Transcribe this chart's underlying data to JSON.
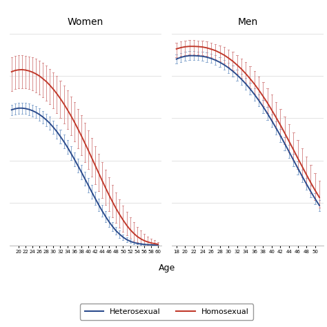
{
  "title_women": "Women",
  "title_men": "Men",
  "xlabel": "Age",
  "legend_labels": [
    "Heterosexual",
    "Homosexual"
  ],
  "het_color": "#2B4B8C",
  "hom_color": "#C0392B",
  "het_ci_color": "#8BAAD0",
  "hom_ci_color": "#D89090",
  "background_color": "#FFFFFF",
  "grid_color": "#DDDDDD",
  "women_ages": [
    18,
    19,
    20,
    21,
    22,
    23,
    24,
    25,
    26,
    27,
    28,
    29,
    30,
    31,
    32,
    33,
    34,
    35,
    36,
    37,
    38,
    39,
    40,
    41,
    42,
    43,
    44,
    45,
    46,
    47,
    48,
    49,
    50,
    51,
    52,
    53,
    54,
    55,
    56,
    57,
    58,
    59,
    60
  ],
  "women_het_mean": [
    0.64,
    0.645,
    0.648,
    0.648,
    0.646,
    0.642,
    0.636,
    0.628,
    0.618,
    0.606,
    0.592,
    0.576,
    0.557,
    0.537,
    0.514,
    0.49,
    0.464,
    0.436,
    0.407,
    0.377,
    0.347,
    0.315,
    0.284,
    0.252,
    0.221,
    0.191,
    0.162,
    0.135,
    0.11,
    0.088,
    0.068,
    0.052,
    0.038,
    0.027,
    0.019,
    0.013,
    0.009,
    0.006,
    0.004,
    0.003,
    0.002,
    0.001,
    0.001
  ],
  "women_het_lo": [
    0.615,
    0.619,
    0.622,
    0.622,
    0.62,
    0.615,
    0.609,
    0.6,
    0.589,
    0.577,
    0.562,
    0.545,
    0.526,
    0.505,
    0.482,
    0.457,
    0.431,
    0.403,
    0.374,
    0.344,
    0.313,
    0.282,
    0.251,
    0.22,
    0.19,
    0.161,
    0.134,
    0.109,
    0.086,
    0.066,
    0.049,
    0.035,
    0.024,
    0.016,
    0.01,
    0.006,
    0.004,
    0.002,
    0.001,
    0.001,
    0.001,
    0.0005,
    0.0003
  ],
  "women_het_hi": [
    0.665,
    0.671,
    0.674,
    0.674,
    0.672,
    0.669,
    0.663,
    0.656,
    0.647,
    0.635,
    0.622,
    0.607,
    0.588,
    0.569,
    0.546,
    0.523,
    0.497,
    0.469,
    0.44,
    0.41,
    0.381,
    0.348,
    0.317,
    0.284,
    0.252,
    0.221,
    0.19,
    0.161,
    0.134,
    0.11,
    0.087,
    0.069,
    0.052,
    0.038,
    0.028,
    0.02,
    0.014,
    0.01,
    0.007,
    0.005,
    0.003,
    0.002,
    0.001
  ],
  "women_hom_mean": [
    0.82,
    0.826,
    0.829,
    0.83,
    0.828,
    0.824,
    0.818,
    0.81,
    0.8,
    0.787,
    0.773,
    0.756,
    0.737,
    0.716,
    0.693,
    0.668,
    0.641,
    0.613,
    0.583,
    0.551,
    0.518,
    0.484,
    0.449,
    0.413,
    0.377,
    0.341,
    0.305,
    0.27,
    0.236,
    0.204,
    0.173,
    0.145,
    0.119,
    0.095,
    0.074,
    0.057,
    0.042,
    0.031,
    0.022,
    0.016,
    0.011,
    0.008,
    0.005
  ],
  "women_hom_lo": [
    0.73,
    0.738,
    0.742,
    0.743,
    0.741,
    0.737,
    0.731,
    0.722,
    0.711,
    0.698,
    0.683,
    0.666,
    0.647,
    0.625,
    0.602,
    0.577,
    0.549,
    0.521,
    0.491,
    0.459,
    0.427,
    0.393,
    0.359,
    0.325,
    0.29,
    0.256,
    0.222,
    0.19,
    0.16,
    0.132,
    0.106,
    0.083,
    0.063,
    0.046,
    0.033,
    0.022,
    0.015,
    0.009,
    0.006,
    0.003,
    0.002,
    0.001,
    0.001
  ],
  "women_hom_hi": [
    0.89,
    0.895,
    0.897,
    0.898,
    0.896,
    0.893,
    0.888,
    0.881,
    0.872,
    0.861,
    0.849,
    0.834,
    0.817,
    0.799,
    0.778,
    0.756,
    0.731,
    0.704,
    0.675,
    0.645,
    0.613,
    0.578,
    0.543,
    0.506,
    0.468,
    0.431,
    0.394,
    0.356,
    0.32,
    0.284,
    0.251,
    0.218,
    0.188,
    0.159,
    0.132,
    0.109,
    0.088,
    0.07,
    0.054,
    0.041,
    0.031,
    0.023,
    0.016
  ],
  "men_ages": [
    18,
    19,
    20,
    21,
    22,
    23,
    24,
    25,
    26,
    27,
    28,
    29,
    30,
    31,
    32,
    33,
    34,
    35,
    36,
    37,
    38,
    39,
    40,
    41,
    42,
    43,
    44,
    45,
    46,
    47,
    48,
    49,
    50,
    51
  ],
  "men_het_mean": [
    0.88,
    0.888,
    0.893,
    0.896,
    0.896,
    0.895,
    0.893,
    0.889,
    0.883,
    0.875,
    0.865,
    0.853,
    0.839,
    0.823,
    0.805,
    0.785,
    0.763,
    0.739,
    0.713,
    0.685,
    0.655,
    0.623,
    0.589,
    0.554,
    0.518,
    0.48,
    0.442,
    0.403,
    0.365,
    0.327,
    0.29,
    0.254,
    0.22,
    0.188
  ],
  "men_het_lo": [
    0.858,
    0.866,
    0.872,
    0.875,
    0.875,
    0.874,
    0.871,
    0.867,
    0.861,
    0.852,
    0.842,
    0.829,
    0.815,
    0.798,
    0.779,
    0.759,
    0.736,
    0.711,
    0.684,
    0.656,
    0.625,
    0.593,
    0.559,
    0.523,
    0.487,
    0.449,
    0.411,
    0.373,
    0.335,
    0.297,
    0.261,
    0.226,
    0.193,
    0.163
  ],
  "men_het_hi": [
    0.9,
    0.909,
    0.914,
    0.917,
    0.917,
    0.916,
    0.914,
    0.911,
    0.905,
    0.898,
    0.888,
    0.877,
    0.863,
    0.848,
    0.831,
    0.811,
    0.79,
    0.767,
    0.742,
    0.714,
    0.685,
    0.653,
    0.619,
    0.585,
    0.549,
    0.511,
    0.473,
    0.433,
    0.395,
    0.357,
    0.319,
    0.282,
    0.247,
    0.213
  ],
  "men_hom_mean": [
    0.928,
    0.934,
    0.938,
    0.94,
    0.94,
    0.939,
    0.937,
    0.933,
    0.927,
    0.92,
    0.91,
    0.899,
    0.885,
    0.87,
    0.852,
    0.833,
    0.811,
    0.787,
    0.762,
    0.734,
    0.704,
    0.673,
    0.639,
    0.604,
    0.568,
    0.53,
    0.491,
    0.452,
    0.412,
    0.373,
    0.334,
    0.296,
    0.26,
    0.226
  ],
  "men_hom_lo": [
    0.888,
    0.895,
    0.899,
    0.902,
    0.902,
    0.901,
    0.898,
    0.894,
    0.888,
    0.88,
    0.87,
    0.858,
    0.844,
    0.828,
    0.81,
    0.79,
    0.767,
    0.743,
    0.716,
    0.688,
    0.657,
    0.624,
    0.59,
    0.554,
    0.517,
    0.479,
    0.44,
    0.401,
    0.361,
    0.322,
    0.284,
    0.247,
    0.212,
    0.179
  ],
  "men_hom_hi": [
    0.958,
    0.963,
    0.967,
    0.969,
    0.969,
    0.968,
    0.966,
    0.963,
    0.958,
    0.952,
    0.945,
    0.936,
    0.925,
    0.913,
    0.899,
    0.883,
    0.865,
    0.845,
    0.822,
    0.798,
    0.771,
    0.742,
    0.711,
    0.678,
    0.645,
    0.609,
    0.572,
    0.534,
    0.496,
    0.457,
    0.418,
    0.379,
    0.342,
    0.306
  ]
}
